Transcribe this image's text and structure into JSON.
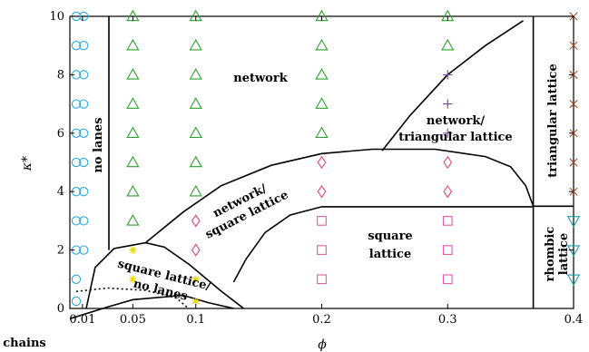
{
  "chart_data": {
    "type": "scatter",
    "xlabel": "ϕ",
    "ylabel": "κ*",
    "xlim": [
      0,
      0.4
    ],
    "ylim": [
      0,
      10
    ],
    "x_ticks": [
      {
        "value": 0.01,
        "label": "0.01"
      },
      {
        "value": 0.05,
        "label": "0.05"
      },
      {
        "value": 0.1,
        "label": "0.1"
      },
      {
        "value": 0.2,
        "label": "0.2"
      },
      {
        "value": 0.3,
        "label": "0.3"
      },
      {
        "value": 0.4,
        "label": "0.4"
      }
    ],
    "y_ticks": [
      {
        "value": 0,
        "label": "0"
      },
      {
        "value": 2,
        "label": "2"
      },
      {
        "value": 4,
        "label": "4"
      },
      {
        "value": 6,
        "label": "6"
      },
      {
        "value": 8,
        "label": "8"
      },
      {
        "value": 10,
        "label": "10"
      }
    ],
    "regions": [
      {
        "label": "no lanes"
      },
      {
        "label": "network"
      },
      {
        "label": "network/ square lattice"
      },
      {
        "label": "network/ triangular lattice"
      },
      {
        "label": "triangular lattice"
      },
      {
        "label": "square lattice"
      },
      {
        "label": "square lattice/ no lanes"
      },
      {
        "label": "rhombic lattice"
      },
      {
        "label": "chains"
      }
    ],
    "series": [
      {
        "marker": "circle",
        "color": "#2aa9d8",
        "points": [
          [
            0.005,
            10
          ],
          [
            0.011,
            10
          ],
          [
            0.005,
            9
          ],
          [
            0.011,
            9
          ],
          [
            0.005,
            8
          ],
          [
            0.011,
            8
          ],
          [
            0.005,
            7
          ],
          [
            0.011,
            7
          ],
          [
            0.005,
            6
          ],
          [
            0.011,
            6
          ],
          [
            0.005,
            5
          ],
          [
            0.011,
            5
          ],
          [
            0.005,
            4
          ],
          [
            0.011,
            4
          ],
          [
            0.005,
            3
          ],
          [
            0.011,
            3
          ],
          [
            0.005,
            2
          ],
          [
            0.011,
            2
          ],
          [
            0.005,
            1
          ],
          [
            0.005,
            0.25
          ]
        ]
      },
      {
        "marker": "triangle-up",
        "color": "#2ca02c",
        "points": [
          [
            0.05,
            10
          ],
          [
            0.05,
            9
          ],
          [
            0.05,
            8
          ],
          [
            0.05,
            7
          ],
          [
            0.05,
            6
          ],
          [
            0.05,
            5
          ],
          [
            0.05,
            4
          ],
          [
            0.05,
            3
          ],
          [
            0.1,
            10
          ],
          [
            0.1,
            9
          ],
          [
            0.1,
            8
          ],
          [
            0.1,
            7
          ],
          [
            0.1,
            6
          ],
          [
            0.1,
            5
          ],
          [
            0.1,
            4
          ],
          [
            0.2,
            10
          ],
          [
            0.2,
            9
          ],
          [
            0.2,
            8
          ],
          [
            0.2,
            7
          ],
          [
            0.2,
            6
          ],
          [
            0.3,
            10
          ],
          [
            0.3,
            9
          ]
        ]
      },
      {
        "marker": "plus",
        "color": "#7b3fa0",
        "points": [
          [
            0.3,
            8
          ],
          [
            0.3,
            7
          ],
          [
            0.3,
            6
          ]
        ]
      },
      {
        "marker": "diamond",
        "color": "#e0457b",
        "points": [
          [
            0.1,
            3
          ],
          [
            0.1,
            2
          ],
          [
            0.2,
            5
          ],
          [
            0.2,
            4
          ],
          [
            0.3,
            5
          ],
          [
            0.3,
            4
          ]
        ]
      },
      {
        "marker": "square",
        "color": "#e05aa8",
        "points": [
          [
            0.2,
            3
          ],
          [
            0.2,
            2
          ],
          [
            0.2,
            1
          ],
          [
            0.3,
            3
          ],
          [
            0.3,
            2
          ],
          [
            0.3,
            1
          ]
        ]
      },
      {
        "marker": "star",
        "color": "#e8d800",
        "points": [
          [
            0.05,
            2
          ],
          [
            0.05,
            1
          ],
          [
            0.1,
            1
          ],
          [
            0.1,
            0.25
          ]
        ]
      },
      {
        "marker": "cross",
        "color": "#a0522d",
        "points": [
          [
            0.4,
            10
          ],
          [
            0.4,
            9
          ],
          [
            0.4,
            8
          ],
          [
            0.4,
            7
          ],
          [
            0.4,
            6
          ],
          [
            0.4,
            5
          ],
          [
            0.4,
            4
          ]
        ]
      },
      {
        "marker": "triangle-down",
        "color": "#17a2a8",
        "points": [
          [
            0.4,
            3
          ],
          [
            0.4,
            2
          ],
          [
            0.4,
            1
          ]
        ]
      }
    ]
  }
}
